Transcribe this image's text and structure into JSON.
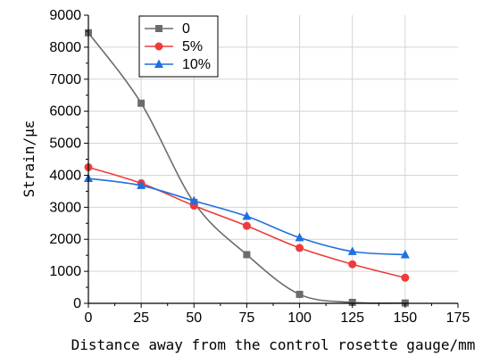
{
  "chart_data": {
    "type": "line",
    "xlabel": "Distance away from the control rosette gauge/mm",
    "ylabel": "Strain/με",
    "xlim": [
      0,
      175
    ],
    "ylim": [
      0,
      9000
    ],
    "xticks": [
      "0",
      "25",
      "50",
      "75",
      "100",
      "125",
      "150",
      "175"
    ],
    "yticks": [
      "0",
      "1000",
      "2000",
      "3000",
      "4000",
      "5000",
      "6000",
      "7000",
      "8000",
      "9000"
    ],
    "grid": true,
    "legend_position": "top-left",
    "x": [
      0,
      25,
      50,
      75,
      100,
      125,
      150
    ],
    "series": [
      {
        "name": "0",
        "color": "#6b6b6b",
        "marker": "square",
        "values": [
          8450,
          6250,
          3150,
          1520,
          280,
          30,
          10
        ]
      },
      {
        "name": "5%",
        "color": "#ee3b3b",
        "marker": "circle",
        "values": [
          4250,
          3750,
          3050,
          2420,
          1730,
          1220,
          800
        ]
      },
      {
        "name": "10%",
        "color": "#1f6fe0",
        "marker": "triangle",
        "values": [
          3900,
          3680,
          3200,
          2720,
          2050,
          1620,
          1520
        ]
      }
    ]
  }
}
